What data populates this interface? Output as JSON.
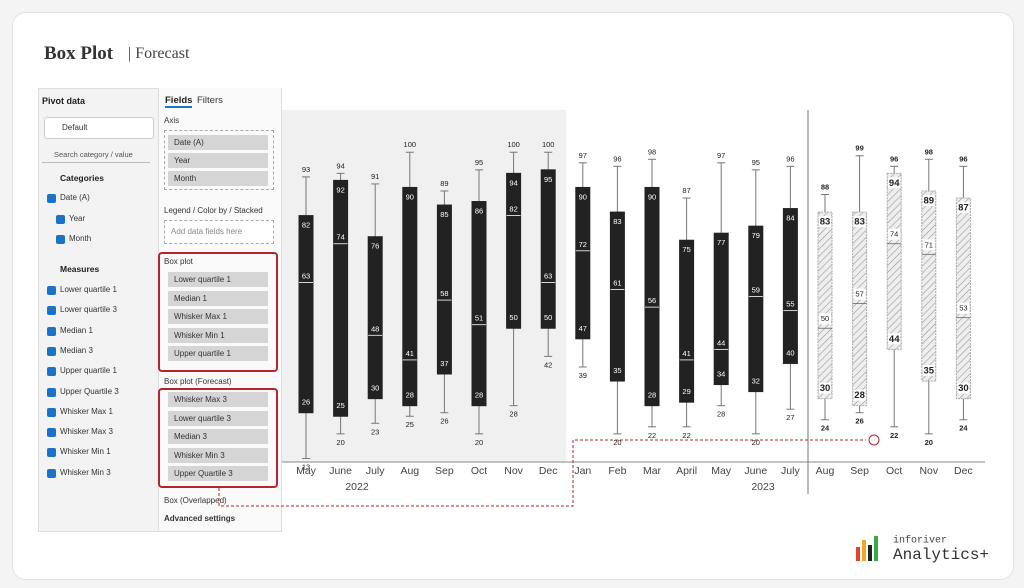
{
  "header": {
    "title": "Box Plot",
    "subtitle": "| Forecast"
  },
  "pivot": {
    "title": "Pivot data",
    "view": "Default",
    "search": "Search category / value",
    "categories_heading": "Categories",
    "categories": [
      "Date (A)",
      "Year",
      "Month"
    ],
    "measures_heading": "Measures",
    "measures": [
      "Lower quartile 1",
      "Lower quartile 3",
      "Median 1",
      "Median 3",
      "Upper quartile 1",
      "Upper Quartile 3",
      "Whisker Max 1",
      "Whisker Max 3",
      "Whisker Min 1",
      "Whisker Min 3"
    ]
  },
  "fields": {
    "tabs": [
      "Fields",
      "Filters"
    ],
    "axis": {
      "label": "Axis",
      "items": [
        "Date (A)",
        "Year",
        "Month"
      ]
    },
    "legend": {
      "label": "Legend / Color by / Stacked",
      "placeholder": "Add data fields here"
    },
    "box_plot": {
      "label": "Box plot",
      "items": [
        "Lower quartile 1",
        "Median 1",
        "Whisker Max 1",
        "Whisker Min 1",
        "Upper quartile 1"
      ]
    },
    "box_plot_forecast": {
      "label": "Box plot (Forecast)",
      "items": [
        "Whisker Max 3",
        "Lower quartile 3",
        "Median 3",
        "Whisker Min 3",
        "Upper Quartile 3"
      ]
    },
    "overlapped": "Box (Overlapped)",
    "advanced": "Advanced settings"
  },
  "logo": {
    "brand": "inforiver",
    "product": "Analytics+"
  },
  "chart_data": [
    {
      "type": "box",
      "categories": [
        "May",
        "June",
        "July",
        "Aug",
        "Sep",
        "Oct",
        "Nov",
        "Dec",
        "Jan",
        "Feb",
        "Mar",
        "April",
        "May",
        "June",
        "July"
      ],
      "x_group_labels": [
        "2022",
        "2023"
      ],
      "color": "#222222",
      "ylim": [
        12,
        112
      ],
      "series": [
        {
          "values": [
            93,
            94,
            91,
            100,
            89,
            95,
            100,
            100,
            97,
            96,
            98,
            87,
            97,
            95,
            96
          ]
        },
        {
          "values": [
            82,
            92,
            76,
            90,
            85,
            86,
            94,
            95,
            90,
            83,
            90,
            75,
            77,
            79,
            84
          ]
        },
        {
          "values": [
            63,
            74,
            48,
            41,
            58,
            51,
            82,
            63,
            72,
            61,
            56,
            41,
            44,
            59,
            55
          ]
        },
        {
          "values": [
            26,
            25,
            30,
            28,
            37,
            28,
            50,
            50,
            47,
            35,
            28,
            29,
            34,
            32,
            40
          ]
        },
        {
          "values": [
            13,
            20,
            23,
            25,
            26,
            20,
            28,
            42,
            39,
            20,
            22,
            22,
            28,
            20,
            27
          ]
        }
      ]
    },
    {
      "type": "box",
      "categories": [
        "Aug",
        "Sep",
        "Oct",
        "Nov",
        "Dec"
      ],
      "color": "#dcdcdc",
      "pattern": "hatched",
      "ylim": [
        12,
        112
      ],
      "series": [
        {
          "values": [
            88,
            99,
            96,
            98,
            96
          ]
        },
        {
          "values": [
            83,
            83,
            94,
            89,
            87
          ]
        },
        {
          "values": [
            50,
            57,
            74,
            71,
            53
          ]
        },
        {
          "values": [
            30,
            28,
            44,
            35,
            30
          ]
        },
        {
          "values": [
            24,
            26,
            22,
            20,
            24
          ]
        }
      ]
    }
  ]
}
